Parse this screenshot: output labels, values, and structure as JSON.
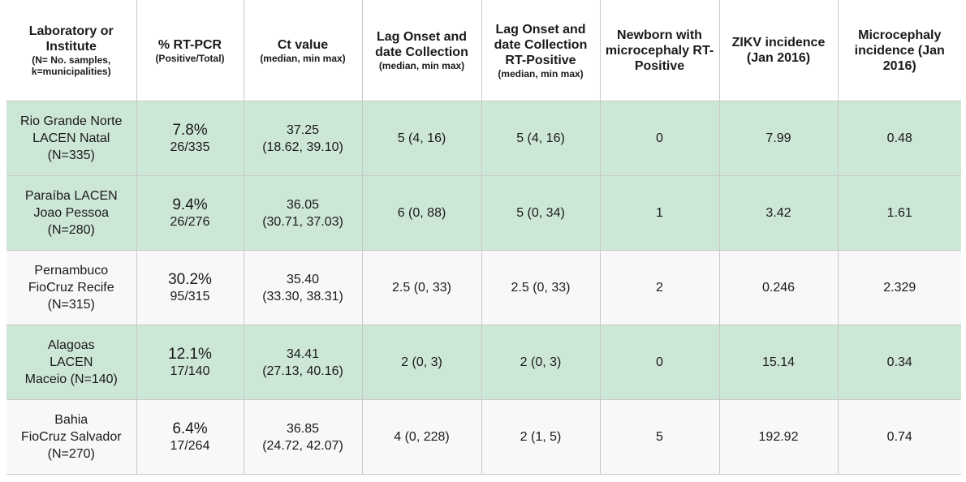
{
  "headers": [
    {
      "main": "Laboratory or Institute",
      "sub": "(N= No. samples, k=municipalities)"
    },
    {
      "main": "% RT-PCR",
      "sub": "(Positive/Total)"
    },
    {
      "main": "Ct value",
      "sub": "(median, min max)"
    },
    {
      "main": "Lag Onset and date Collection",
      "sub": "(median, min max)"
    },
    {
      "main": "Lag Onset and date Collection RT-Positive",
      "sub": "(median, min max)"
    },
    {
      "main": "Newborn with microcephaly RT-Positive",
      "sub": ""
    },
    {
      "main": "ZIKV incidence (Jan 2016)",
      "sub": ""
    },
    {
      "main": "Microcephaly incidence (Jan 2016)",
      "sub": ""
    }
  ],
  "rows": [
    {
      "lab": [
        "Rio Grande Norte",
        "LACEN Natal",
        "(N=335)"
      ],
      "pct": "7.8%",
      "frac": "26/335",
      "ct": [
        "37.25",
        "(18.62, 39.10)"
      ],
      "lag": "5 (4, 16)",
      "lag_pos": "5 (4, 16)",
      "newborn": "0",
      "zikv": "7.99",
      "micro": "0.48",
      "shade": "green"
    },
    {
      "lab": [
        "Paraíba LACEN",
        "Joao Pessoa",
        "(N=280)"
      ],
      "pct": "9.4%",
      "frac": "26/276",
      "ct": [
        "36.05",
        "(30.71, 37.03)"
      ],
      "lag": "6 (0, 88)",
      "lag_pos": "5 (0, 34)",
      "newborn": "1",
      "zikv": "3.42",
      "micro": "1.61",
      "shade": "green"
    },
    {
      "lab": [
        "Pernambuco",
        "FioCruz Recife",
        "(N=315)"
      ],
      "pct": "30.2%",
      "frac": "95/315",
      "ct": [
        "35.40",
        "(33.30, 38.31)"
      ],
      "lag": "2.5 (0, 33)",
      "lag_pos": "2.5 (0, 33)",
      "newborn": "2",
      "zikv": "0.246",
      "micro": "2.329",
      "shade": "white"
    },
    {
      "lab": [
        "Alagoas",
        "LACEN",
        "Maceio (N=140)"
      ],
      "pct": "12.1%",
      "frac": "17/140",
      "ct": [
        "34.41",
        "(27.13, 40.16)"
      ],
      "lag": "2 (0, 3)",
      "lag_pos": "2 (0, 3)",
      "newborn": "0",
      "zikv": "15.14",
      "micro": "0.34",
      "shade": "green"
    },
    {
      "lab": [
        "Bahia",
        "FioCruz Salvador",
        "(N=270)"
      ],
      "pct": "6.4%",
      "frac": "17/264",
      "ct": [
        "36.85",
        "(24.72, 42.07)"
      ],
      "lag": "4 (0, 228)",
      "lag_pos": "2 (1, 5)",
      "newborn": "5",
      "zikv": "192.92",
      "micro": "0.74",
      "shade": "white"
    }
  ],
  "colors": {
    "green_row": "#cde7d7",
    "white_row": "#f8f8f8",
    "border": "#c8c8c8"
  }
}
